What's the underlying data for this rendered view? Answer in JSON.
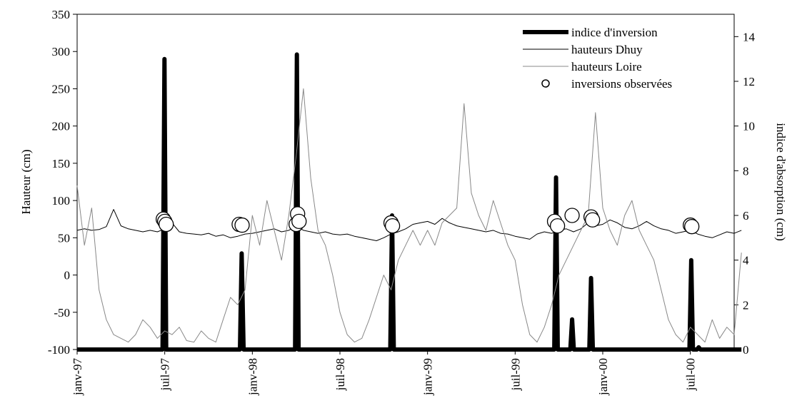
{
  "chart_data": {
    "type": "line",
    "y_label": "Hauteur (cm)",
    "y2_label": "indice d'absorption (cm)",
    "xlim": [
      0,
      45
    ],
    "ylim": [
      -100,
      350
    ],
    "y2lim": [
      0,
      15
    ],
    "xticks": [
      {
        "value": 0,
        "label": "janv-97"
      },
      {
        "value": 6,
        "label": "juil-97"
      },
      {
        "value": 12,
        "label": "janv-98"
      },
      {
        "value": 18,
        "label": "juil-98"
      },
      {
        "value": 24,
        "label": "janv-99"
      },
      {
        "value": 30,
        "label": "juil-99"
      },
      {
        "value": 36,
        "label": "janv-00"
      },
      {
        "value": 42,
        "label": "juil-00"
      }
    ],
    "yticks": [
      -100,
      -50,
      0,
      50,
      100,
      150,
      200,
      250,
      300,
      350
    ],
    "y2ticks": [
      0,
      2,
      4,
      6,
      8,
      10,
      12,
      14
    ],
    "legend": "top-right",
    "x": [
      0,
      0.5,
      1,
      1.5,
      2,
      2.5,
      3,
      3.5,
      4,
      4.5,
      5,
      5.5,
      6,
      6.5,
      7,
      7.5,
      8,
      8.5,
      9,
      9.5,
      10,
      10.5,
      11,
      11.5,
      12,
      12.5,
      13,
      13.5,
      14,
      14.5,
      15,
      15.5,
      16,
      16.5,
      17,
      17.5,
      18,
      18.5,
      19,
      19.5,
      20,
      20.5,
      21,
      21.5,
      22,
      22.5,
      23,
      23.5,
      24,
      24.5,
      25,
      25.5,
      26,
      26.5,
      27,
      27.5,
      28,
      28.5,
      29,
      29.5,
      30,
      30.5,
      31,
      31.5,
      32,
      32.5,
      33,
      33.5,
      34,
      34.5,
      35,
      35.5,
      36,
      36.5,
      37,
      37.5,
      38,
      38.5,
      39,
      39.5,
      40,
      40.5,
      41,
      41.5,
      42,
      42.5,
      43,
      43.5,
      44,
      44.5,
      45,
      45.5
    ],
    "series": [
      {
        "name": "indice d'inversion",
        "color": "#000000",
        "style": "thick",
        "axis": "y2",
        "x": [
          0,
          5.85,
          5.98,
          6.1,
          11.15,
          11.27,
          11.4,
          14.93,
          15.05,
          15.17,
          21.45,
          21.57,
          21.69,
          32.68,
          32.8,
          32.92,
          33.78,
          33.9,
          34.02,
          35.08,
          35.2,
          35.32,
          41.94,
          42.06,
          42.18,
          42.45,
          42.57,
          42.69,
          45.5
        ],
        "values": [
          0,
          0,
          13,
          0,
          0,
          4.3,
          0,
          0,
          13.2,
          0,
          0,
          6,
          0,
          0,
          7.7,
          0,
          0,
          1.35,
          0,
          0,
          3.2,
          0,
          0,
          4,
          0,
          0,
          0.1,
          0,
          0
        ]
      },
      {
        "name": "hauteurs Dhuy",
        "color": "#000000",
        "style": "thin",
        "values": [
          60,
          62,
          60,
          61,
          65,
          88,
          66,
          62,
          60,
          58,
          60,
          58,
          62,
          70,
          58,
          56,
          55,
          54,
          56,
          52,
          54,
          50,
          52,
          55,
          56,
          58,
          60,
          62,
          58,
          60,
          66,
          60,
          58,
          56,
          58,
          55,
          54,
          55,
          52,
          50,
          48,
          46,
          50,
          55,
          58,
          62,
          68,
          70,
          72,
          68,
          76,
          70,
          66,
          64,
          62,
          60,
          58,
          60,
          56,
          55,
          52,
          50,
          48,
          55,
          58,
          56,
          60,
          62,
          58,
          62,
          70,
          66,
          68,
          74,
          70,
          64,
          62,
          66,
          72,
          66,
          62,
          60,
          56,
          58,
          60,
          55,
          52,
          50,
          54,
          58,
          56,
          60
        ]
      },
      {
        "name": "hauteurs Loire",
        "color": "#888888",
        "style": "thin",
        "values": [
          120,
          40,
          90,
          -20,
          -60,
          -80,
          -85,
          -90,
          -80,
          -60,
          -70,
          -85,
          -75,
          -80,
          -70,
          -88,
          -90,
          -75,
          -85,
          -90,
          -60,
          -30,
          -40,
          -20,
          80,
          40,
          100,
          60,
          20,
          80,
          160,
          250,
          130,
          60,
          40,
          0,
          -50,
          -80,
          -90,
          -85,
          -60,
          -30,
          0,
          -20,
          20,
          40,
          60,
          40,
          60,
          40,
          70,
          80,
          90,
          230,
          110,
          80,
          60,
          100,
          70,
          40,
          20,
          -40,
          -80,
          -90,
          -70,
          -40,
          0,
          20,
          40,
          60,
          80,
          218,
          90,
          60,
          40,
          80,
          100,
          60,
          40,
          20,
          -20,
          -60,
          -80,
          -90,
          -70,
          -80,
          -90,
          -60,
          -85,
          -70,
          -80,
          30
        ]
      },
      {
        "name": "inversions observées",
        "color": "#000000",
        "style": "marker",
        "x": [
          5.9,
          6.0,
          6.1,
          11.1,
          11.3,
          15.0,
          15.1,
          15.2,
          21.5,
          21.6,
          32.7,
          32.9,
          33.9,
          35.2,
          35.3,
          42.0,
          42.1
        ],
        "values": [
          75,
          72,
          68,
          68,
          67,
          68,
          82,
          72,
          70,
          66,
          72,
          66,
          80,
          78,
          74,
          67,
          65
        ]
      }
    ]
  }
}
